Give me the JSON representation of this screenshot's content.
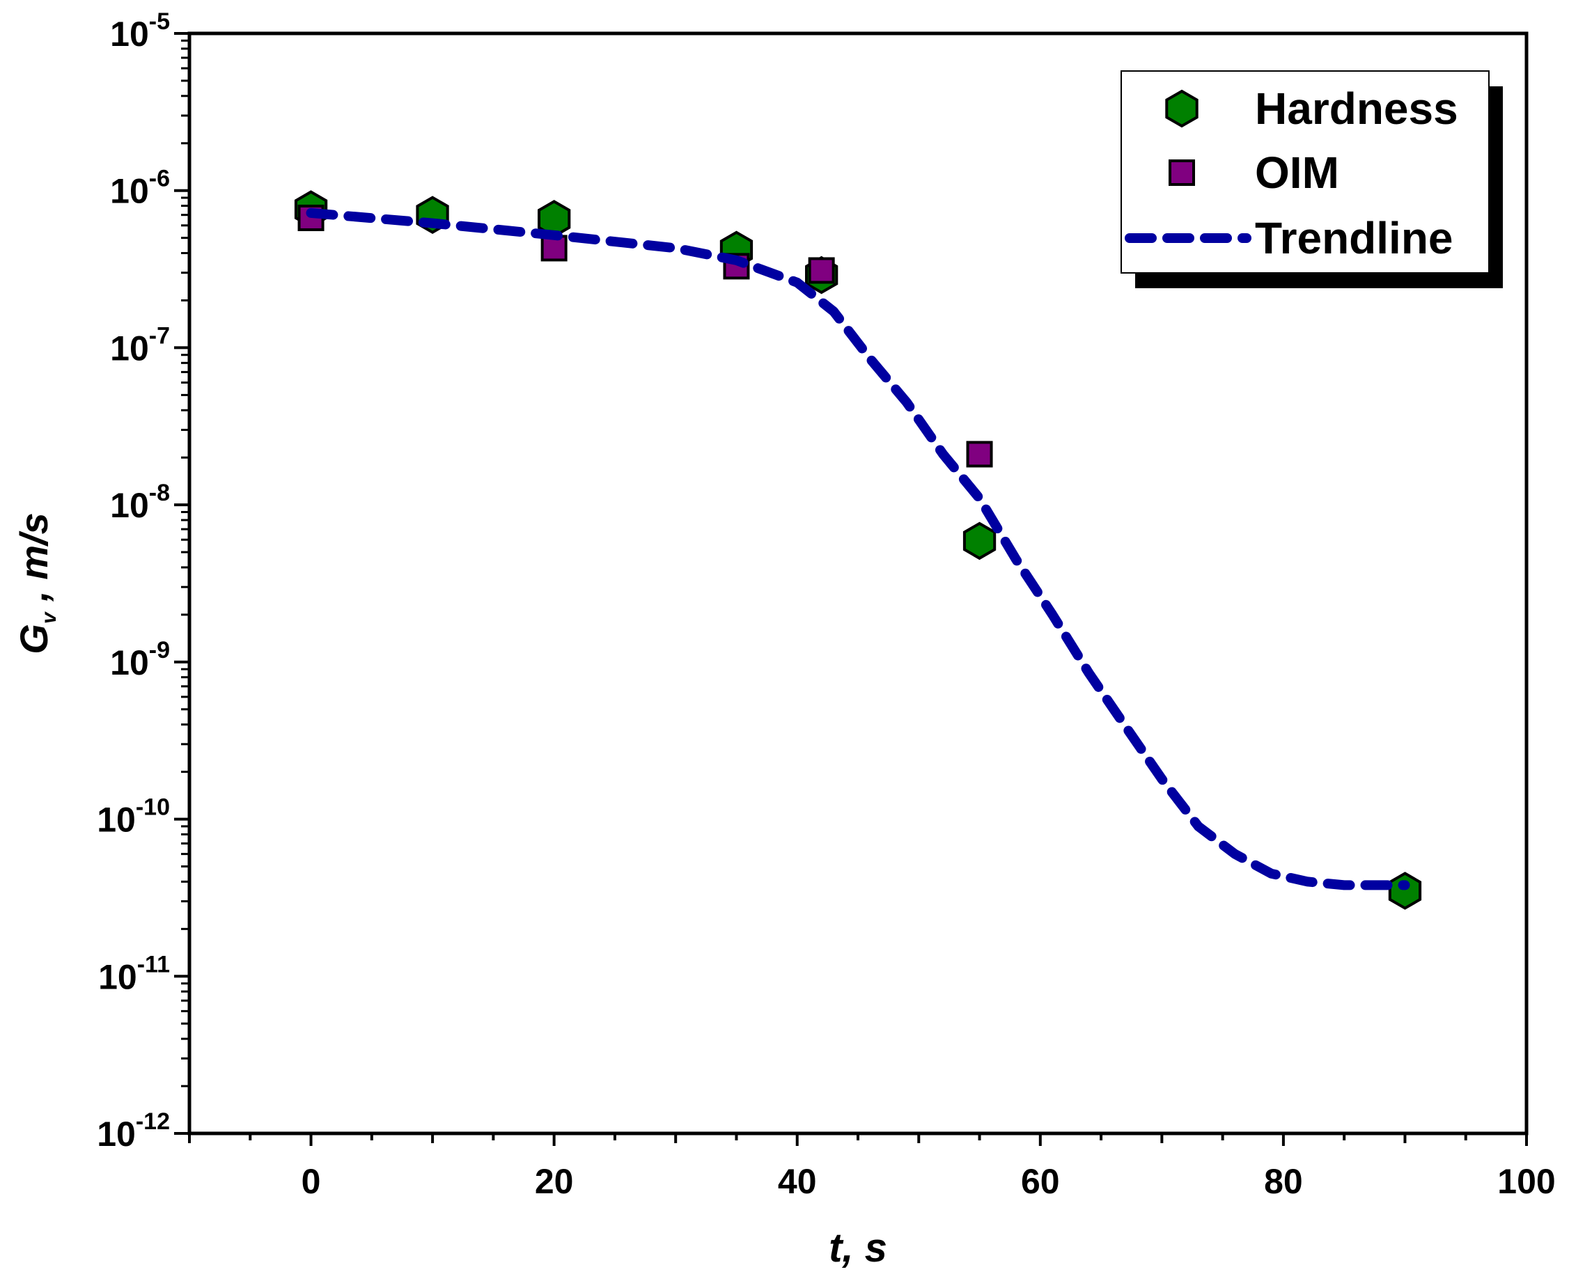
{
  "chart_data": {
    "type": "scatter",
    "xlabel": {
      "main": "t, s"
    },
    "ylabel": {
      "main": "G",
      "sub": "v",
      "rest": " , m/s"
    },
    "xlim": [
      -10,
      100
    ],
    "ylim_log10": [
      -12,
      -5
    ],
    "y_scale": "log",
    "x_ticks": [
      0,
      20,
      40,
      60,
      80,
      100
    ],
    "x_tick_labels": [
      "0",
      "20",
      "40",
      "60",
      "80",
      "100"
    ],
    "y_ticks": [
      {
        "base": "10",
        "exp": "-12",
        "value": 1e-12
      },
      {
        "base": "10",
        "exp": "-11",
        "value": 1e-11
      },
      {
        "base": "10",
        "exp": "-10",
        "value": 1e-10
      },
      {
        "base": "10",
        "exp": "-9",
        "value": 1e-09
      },
      {
        "base": "10",
        "exp": "-8",
        "value": 1e-08
      },
      {
        "base": "10",
        "exp": "-7",
        "value": 1e-07
      },
      {
        "base": "10",
        "exp": "-6",
        "value": 1e-06
      },
      {
        "base": "10",
        "exp": "-5",
        "value": 1e-05
      }
    ],
    "legend_position": "top-right",
    "series": [
      {
        "name": "Hardness",
        "marker": "hexagon",
        "color": "#008000",
        "points": [
          [
            0,
            7.6e-07
          ],
          [
            10,
            7e-07
          ],
          [
            20,
            6.6e-07
          ],
          [
            35,
            4.2e-07
          ],
          [
            42,
            2.9e-07
          ],
          [
            55,
            5.9e-09
          ],
          [
            90,
            3.5e-11
          ]
        ]
      },
      {
        "name": "OIM",
        "marker": "square",
        "color": "#800080",
        "points": [
          [
            0,
            6.7e-07
          ],
          [
            20,
            4.3e-07
          ],
          [
            35,
            3.3e-07
          ],
          [
            42,
            3.1e-07
          ],
          [
            55,
            2.1e-08
          ]
        ]
      },
      {
        "name": "Trendline",
        "type": "line",
        "style": "dashed",
        "color": "#0000A0",
        "points": [
          [
            0,
            7.2e-07
          ],
          [
            10,
            6.2e-07
          ],
          [
            20,
            5.2e-07
          ],
          [
            30,
            4.3e-07
          ],
          [
            35,
            3.6e-07
          ],
          [
            40,
            2.6e-07
          ],
          [
            43,
            1.7e-07
          ],
          [
            46,
            8.5e-08
          ],
          [
            49,
            4.5e-08
          ],
          [
            52,
            2.1e-08
          ],
          [
            55,
            1.1e-08
          ],
          [
            58,
            4.5e-09
          ],
          [
            61,
            2e-09
          ],
          [
            64,
            8.5e-10
          ],
          [
            67,
            3.9e-10
          ],
          [
            70,
            1.8e-10
          ],
          [
            73,
            9e-11
          ],
          [
            76,
            6e-11
          ],
          [
            79,
            4.5e-11
          ],
          [
            82,
            4e-11
          ],
          [
            85,
            3.8e-11
          ],
          [
            88,
            3.8e-11
          ],
          [
            90,
            3.8e-11
          ]
        ]
      }
    ]
  }
}
